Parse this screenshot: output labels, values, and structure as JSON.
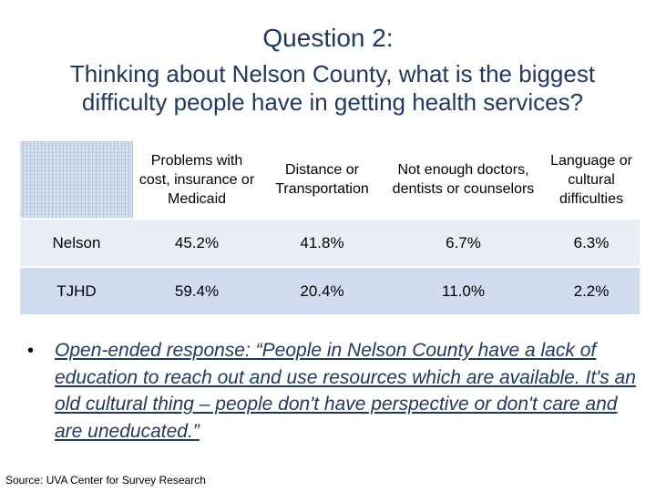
{
  "title": "Question 2:",
  "subtitle": "Thinking about Nelson County, what is the biggest difficulty people have in getting health services?",
  "table": {
    "headers": [
      "",
      "Problems with cost, insurance or Medicaid",
      "Distance or Transportation",
      "Not enough doctors, dentists or counselors",
      "Language or cultural difficulties"
    ],
    "rows": [
      [
        "Nelson",
        "45.2%",
        "41.8%",
        "6.7%",
        "6.3%"
      ],
      [
        "TJHD",
        "59.4%",
        "20.4%",
        "11.0%",
        "2.2%"
      ]
    ]
  },
  "bullet": {
    "symbol": "•",
    "text": "Open-ended response: “People in Nelson County have a lack of education to reach out and use resources which are available. It's an old cultural thing – people don't have perspective or don't care and are uneducated.”"
  },
  "source": "Source: UVA Center for Survey Research",
  "colors": {
    "title_text": "#1f3864",
    "row_nelson": "#eaeff7",
    "row_tjhd": "#d2dcef"
  }
}
